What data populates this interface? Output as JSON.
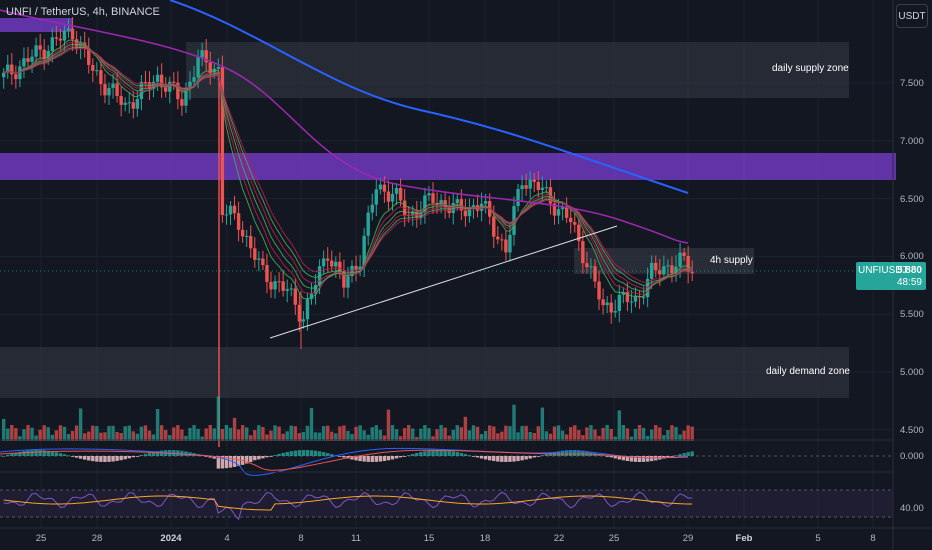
{
  "header": {
    "symbol_title": "UNFI / TetherUS, 4h, BINANCE",
    "currency_button": "USDT"
  },
  "zones": {
    "daily_supply": "daily supply zone",
    "supply_4h": "4h supply",
    "daily_demand": "daily demand zone"
  },
  "price_tag": {
    "symbol": "UNFIUSDT",
    "price": "5.880",
    "countdown": "48:59"
  },
  "price_axis": [
    "7.500",
    "7.000",
    "6.500",
    "6.000",
    "5.500",
    "5.000",
    "4.500"
  ],
  "macd_axis": "0.000",
  "rsi_axis": "40.00",
  "time_axis": [
    "25",
    "28",
    "2024",
    "4",
    "8",
    "11",
    "15",
    "18",
    "22",
    "25",
    "29",
    "Feb",
    "5",
    "8"
  ],
  "colors": {
    "background": "#131722",
    "up": "#26a69a",
    "down": "#ef5350",
    "ema_long": "#2962ff",
    "ema_mid": "#9c27b0",
    "supply_band": "#7b3fd4",
    "zone_box": "#363a45",
    "ribbon_down": "#c2185b",
    "ribbon_up": "#4caf50",
    "rsi_line": "#7e57c2",
    "rsi_ma": "#f9a825"
  },
  "icons": [
    "tradingview-logo-icon"
  ]
}
